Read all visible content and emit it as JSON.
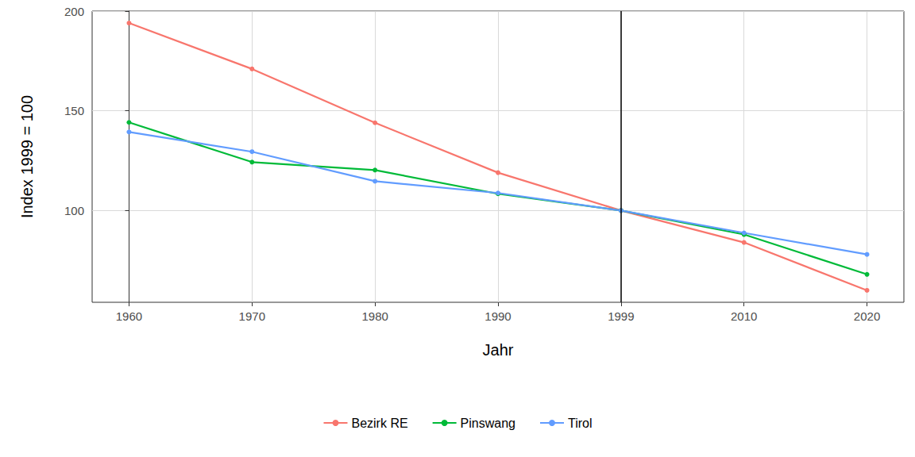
{
  "chart_data": {
    "type": "line",
    "x_label": "Jahr",
    "y_label": "Index 1999 = 100",
    "categories": [
      "1960",
      "1970",
      "1980",
      "1990",
      "1999",
      "2010",
      "2020"
    ],
    "series": [
      {
        "name": "Bezirk RE",
        "color": "#F8766D",
        "values": [
          194,
          171,
          144,
          119,
          100,
          84,
          60
        ]
      },
      {
        "name": "Pinswang",
        "color": "#00BA38",
        "values": [
          144.2,
          124.3,
          120.3,
          108.4,
          100,
          88,
          68
        ]
      },
      {
        "name": "Tirol",
        "color": "#619CFF",
        "values": [
          139.4,
          129.5,
          114.7,
          108.8,
          100,
          88.8,
          78
        ]
      }
    ],
    "ylim": [
      54,
      200
    ],
    "yticks": [
      100,
      150,
      200
    ],
    "vline_x": "1999",
    "marker": "circle",
    "grid": true,
    "legend": "bottom"
  }
}
